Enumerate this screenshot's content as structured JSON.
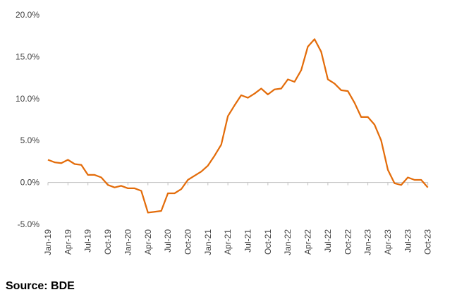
{
  "chart_data": {
    "type": "line",
    "title": "",
    "xlabel": "",
    "ylabel": "",
    "ylim": [
      -5,
      20
    ],
    "y_ticks": [
      "20.0%",
      "15.0%",
      "10.0%",
      "5.0%",
      "0.0%",
      "-5.0%"
    ],
    "y_tick_values": [
      20,
      15,
      10,
      5,
      0,
      -5
    ],
    "x_tick_labels": [
      "Jan-19",
      "Apr-19",
      "Jul-19",
      "Oct-19",
      "Jan-20",
      "Apr-20",
      "Jul-20",
      "Oct-20",
      "Jan-21",
      "Apr-21",
      "Jul-21",
      "Oct-21",
      "Jan-22",
      "Apr-22",
      "Jul-22",
      "Oct-22",
      "Jan-23",
      "Apr-23",
      "Jul-23",
      "Oct-23"
    ],
    "x_tick_index": [
      0,
      3,
      6,
      9,
      12,
      15,
      18,
      21,
      24,
      27,
      30,
      33,
      36,
      39,
      42,
      45,
      48,
      51,
      54,
      57
    ],
    "grid": false,
    "legend": "none",
    "series": [
      {
        "color": "#E36C0A",
        "x": [
          "Jan-19",
          "Feb-19",
          "Mar-19",
          "Apr-19",
          "May-19",
          "Jun-19",
          "Jul-19",
          "Aug-19",
          "Sep-19",
          "Oct-19",
          "Nov-19",
          "Dec-19",
          "Jan-20",
          "Feb-20",
          "Mar-20",
          "Apr-20",
          "May-20",
          "Jun-20",
          "Jul-20",
          "Aug-20",
          "Sep-20",
          "Oct-20",
          "Nov-20",
          "Dec-20",
          "Jan-21",
          "Feb-21",
          "Mar-21",
          "Apr-21",
          "May-21",
          "Jun-21",
          "Jul-21",
          "Aug-21",
          "Sep-21",
          "Oct-21",
          "Nov-21",
          "Dec-21",
          "Jan-22",
          "Feb-22",
          "Mar-22",
          "Apr-22",
          "May-22",
          "Jun-22",
          "Jul-22",
          "Aug-22",
          "Sep-22",
          "Oct-22",
          "Nov-22",
          "Dec-22",
          "Jan-23",
          "Feb-23",
          "Mar-23",
          "Apr-23",
          "May-23",
          "Jun-23",
          "Jul-23",
          "Aug-23",
          "Sep-23",
          "Oct-23"
        ],
        "values": [
          2.7,
          2.4,
          2.3,
          2.7,
          2.2,
          2.1,
          0.9,
          0.9,
          0.6,
          -0.3,
          -0.6,
          -0.4,
          -0.7,
          -0.7,
          -1.0,
          -3.6,
          -3.5,
          -3.4,
          -1.3,
          -1.3,
          -0.8,
          0.3,
          0.8,
          1.3,
          2.0,
          3.2,
          4.5,
          7.9,
          9.2,
          10.4,
          10.1,
          10.6,
          11.2,
          10.5,
          11.1,
          11.2,
          12.3,
          12.0,
          13.4,
          16.2,
          17.1,
          15.6,
          12.3,
          11.8,
          11.0,
          10.9,
          9.5,
          7.8,
          7.8,
          6.9,
          5.0,
          1.5,
          -0.1,
          -0.3,
          0.6,
          0.3,
          0.3,
          -0.6
        ]
      }
    ]
  },
  "source_text": "Source: BDE"
}
